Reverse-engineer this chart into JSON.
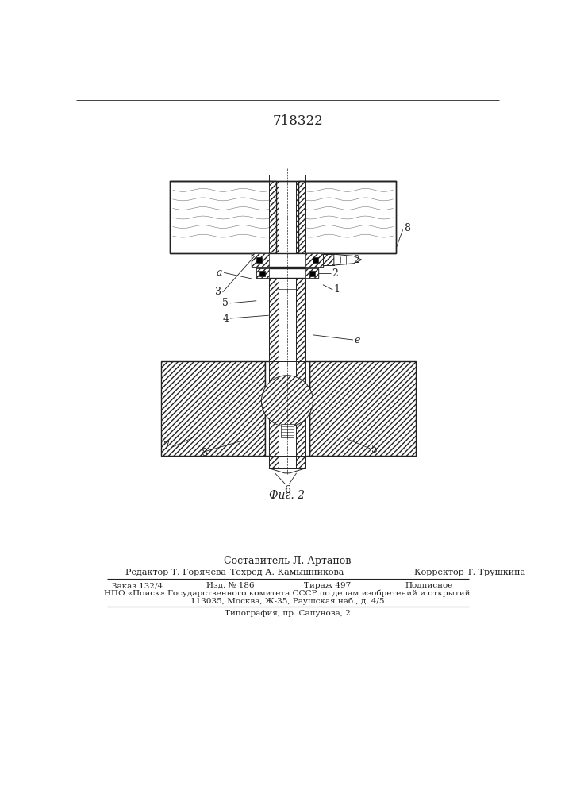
{
  "patent_number": "718322",
  "figure_caption": "Фиг. 2",
  "composer": "Составитель Л. Артанов",
  "editor": "Редактор Т. Горячева",
  "techred": "Техред А. Камышникова",
  "corrector": "Корректор Т. Трушкина",
  "order": "Заказ 132/4",
  "edition": "Изд. № 186",
  "circulation": "Тираж 497",
  "subscription": "Подписное",
  "org_line1": "НПО «Поиск» Государственного комитета СССР по делам изобретений и открытий",
  "org_line2": "113035, Москва, Ж-35, Раушская наб., д. 4/5",
  "typography": "Типография, пр. Сапунова, 2",
  "bg_color": "#ffffff",
  "line_color": "#222222"
}
